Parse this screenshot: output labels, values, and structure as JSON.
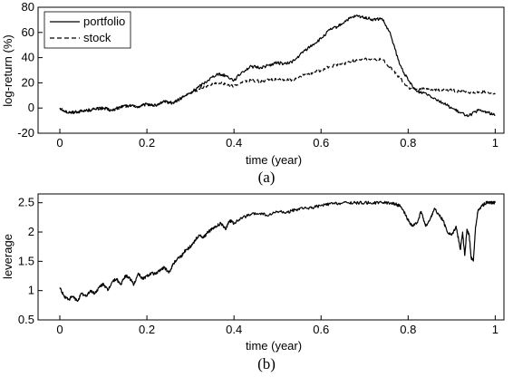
{
  "chart_data": [
    {
      "id": "a",
      "type": "line",
      "caption": "(a)",
      "xlabel": "time (year)",
      "ylabel": "log-return (%)",
      "xlim": [
        -0.05,
        1.02
      ],
      "ylim": [
        -20,
        80
      ],
      "xticks": [
        0,
        0.2,
        0.4,
        0.6,
        0.8,
        1
      ],
      "xtick_labels": [
        "0",
        "0.2",
        "0.4",
        "0.6",
        "0.8",
        "1"
      ],
      "yticks": [
        -20,
        0,
        20,
        40,
        60,
        80
      ],
      "ytick_labels": [
        "-20",
        "0",
        "20",
        "40",
        "60",
        "80"
      ],
      "grid": false,
      "legend": "top-left",
      "series": [
        {
          "name": "portfolio",
          "style": "solid",
          "color": "#000000",
          "x": [
            0,
            0.02,
            0.04,
            0.06,
            0.08,
            0.1,
            0.12,
            0.14,
            0.16,
            0.18,
            0.2,
            0.22,
            0.24,
            0.26,
            0.28,
            0.3,
            0.32,
            0.34,
            0.36,
            0.38,
            0.4,
            0.42,
            0.44,
            0.46,
            0.48,
            0.5,
            0.52,
            0.54,
            0.56,
            0.58,
            0.6,
            0.62,
            0.64,
            0.66,
            0.68,
            0.7,
            0.72,
            0.74,
            0.76,
            0.78,
            0.8,
            0.82,
            0.84,
            0.86,
            0.88,
            0.9,
            0.92,
            0.94,
            0.96,
            0.98,
            1.0
          ],
          "y": [
            0,
            -4,
            -3,
            -2,
            -1,
            0,
            -2,
            1,
            2,
            1,
            3,
            2,
            5,
            4,
            8,
            12,
            17,
            22,
            27,
            26,
            22,
            29,
            33,
            32,
            34,
            36,
            35,
            38,
            45,
            50,
            55,
            62,
            65,
            70,
            73,
            72,
            70,
            71,
            58,
            35,
            22,
            13,
            12,
            8,
            4,
            0,
            -4,
            -6,
            -2,
            -3,
            -6
          ]
        },
        {
          "name": "stock",
          "style": "dashed",
          "color": "#000000",
          "x": [
            0,
            0.02,
            0.04,
            0.06,
            0.08,
            0.1,
            0.12,
            0.14,
            0.16,
            0.18,
            0.2,
            0.22,
            0.24,
            0.26,
            0.28,
            0.3,
            0.32,
            0.34,
            0.36,
            0.38,
            0.4,
            0.42,
            0.44,
            0.46,
            0.48,
            0.5,
            0.52,
            0.54,
            0.56,
            0.58,
            0.6,
            0.62,
            0.64,
            0.66,
            0.68,
            0.7,
            0.72,
            0.74,
            0.76,
            0.78,
            0.8,
            0.82,
            0.84,
            0.86,
            0.88,
            0.9,
            0.92,
            0.94,
            0.96,
            0.98,
            1.0
          ],
          "y": [
            0,
            -4,
            -3,
            -2,
            -1,
            0,
            -2,
            1,
            2,
            1,
            3,
            2,
            5,
            4,
            8,
            12,
            15,
            18,
            20,
            19,
            17,
            21,
            22,
            21,
            22,
            23,
            22,
            23,
            26,
            28,
            30,
            33,
            34,
            36,
            38,
            39,
            38,
            39,
            32,
            24,
            16,
            15,
            15,
            14,
            14,
            14,
            13,
            12,
            12,
            13,
            11
          ]
        }
      ]
    },
    {
      "id": "b",
      "type": "line",
      "caption": "(b)",
      "xlabel": "time (year)",
      "ylabel": "leverage",
      "xlim": [
        -0.05,
        1.02
      ],
      "ylim": [
        0.5,
        2.65
      ],
      "xticks": [
        0,
        0.2,
        0.4,
        0.6,
        0.8,
        1
      ],
      "xtick_labels": [
        "0",
        "0.2",
        "0.4",
        "0.6",
        "0.8",
        "1"
      ],
      "yticks": [
        0.5,
        1,
        1.5,
        2,
        2.5
      ],
      "ytick_labels": [
        "0.5",
        "1",
        "1.5",
        "2",
        "2.5"
      ],
      "grid": false,
      "series": [
        {
          "style": "solid",
          "color": "#000000",
          "x": [
            0,
            0.01,
            0.02,
            0.03,
            0.04,
            0.05,
            0.06,
            0.07,
            0.08,
            0.09,
            0.1,
            0.11,
            0.12,
            0.13,
            0.14,
            0.15,
            0.16,
            0.17,
            0.18,
            0.19,
            0.2,
            0.21,
            0.22,
            0.23,
            0.24,
            0.25,
            0.26,
            0.27,
            0.28,
            0.29,
            0.3,
            0.31,
            0.32,
            0.33,
            0.34,
            0.35,
            0.36,
            0.37,
            0.38,
            0.39,
            0.4,
            0.42,
            0.44,
            0.46,
            0.48,
            0.5,
            0.52,
            0.54,
            0.56,
            0.58,
            0.6,
            0.62,
            0.64,
            0.66,
            0.68,
            0.7,
            0.72,
            0.74,
            0.76,
            0.77,
            0.78,
            0.79,
            0.8,
            0.81,
            0.82,
            0.83,
            0.84,
            0.85,
            0.86,
            0.87,
            0.88,
            0.89,
            0.9,
            0.91,
            0.92,
            0.925,
            0.93,
            0.935,
            0.94,
            0.945,
            0.95,
            0.955,
            0.96,
            0.97,
            0.98,
            0.99,
            1.0
          ],
          "y": [
            1.05,
            0.9,
            0.85,
            0.9,
            0.82,
            0.95,
            0.9,
            1.0,
            0.95,
            1.05,
            1.12,
            1.0,
            1.15,
            1.2,
            1.1,
            1.25,
            1.22,
            1.1,
            1.3,
            1.2,
            1.25,
            1.3,
            1.28,
            1.35,
            1.4,
            1.3,
            1.45,
            1.55,
            1.6,
            1.7,
            1.75,
            1.85,
            1.95,
            1.9,
            2.0,
            2.05,
            2.1,
            2.15,
            2.05,
            2.2,
            2.15,
            2.25,
            2.3,
            2.32,
            2.28,
            2.35,
            2.33,
            2.38,
            2.4,
            2.42,
            2.45,
            2.48,
            2.49,
            2.5,
            2.5,
            2.5,
            2.5,
            2.5,
            2.5,
            2.48,
            2.45,
            2.35,
            2.2,
            2.1,
            2.15,
            2.35,
            2.1,
            2.2,
            2.4,
            2.3,
            2.2,
            2.0,
            1.95,
            2.1,
            1.7,
            2.0,
            1.6,
            2.05,
            1.95,
            1.55,
            1.52,
            2.1,
            2.35,
            2.45,
            2.5,
            2.5,
            2.5
          ]
        }
      ]
    }
  ]
}
